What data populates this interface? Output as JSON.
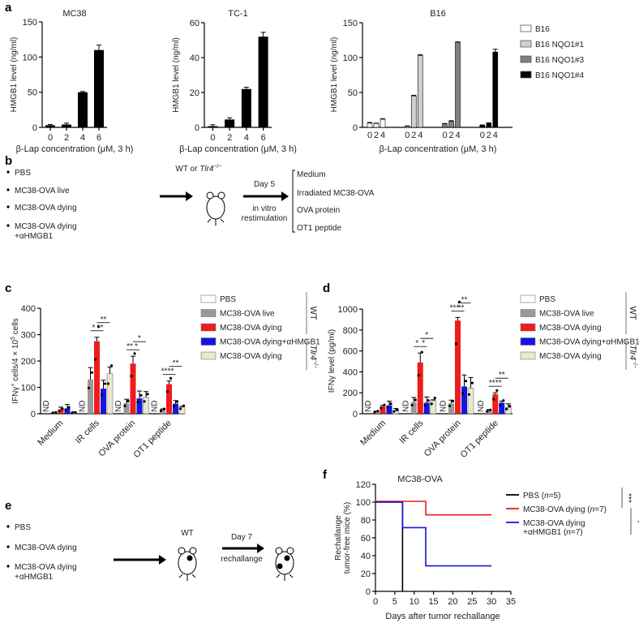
{
  "panel_labels": {
    "a": "a",
    "b": "b",
    "c": "c",
    "d": "d",
    "e": "e",
    "f": "f"
  },
  "chart_data": [
    {
      "id": "a-mc38",
      "type": "bar",
      "title": "MC38",
      "ylabel": "HMGB1 level (ng/ml)",
      "xlabel": "β-Lap concentration (μM, 3 h)",
      "ylim": [
        0,
        150
      ],
      "yticks": [
        0,
        50,
        100,
        150
      ],
      "categories": [
        "0",
        "2",
        "4",
        "6"
      ],
      "values": [
        3,
        4,
        50,
        110
      ],
      "errors": [
        1,
        2,
        1,
        7
      ],
      "color": "#000000"
    },
    {
      "id": "a-tc1",
      "type": "bar",
      "title": "TC-1",
      "ylabel": "HMGB1 level (ng/ml)",
      "xlabel": "β-Lap concentration (μM, 3 h)",
      "ylim": [
        0,
        60
      ],
      "yticks": [
        0,
        20,
        40,
        60
      ],
      "categories": [
        "0",
        "2",
        "4",
        "6"
      ],
      "values": [
        0.7,
        4.5,
        22,
        52
      ],
      "errors": [
        0.8,
        1,
        1,
        2.5
      ],
      "color": "#000000"
    },
    {
      "id": "a-b16",
      "type": "bar",
      "title": "B16",
      "ylabel": "HMGB1 level (ng/ml)",
      "xlabel": "β-Lap concentration (μM, 3 h)",
      "ylim": [
        0,
        150
      ],
      "yticks": [
        0,
        50,
        100,
        150
      ],
      "categories": [
        "0",
        "2",
        "4"
      ],
      "series": [
        {
          "name": "B16",
          "values": [
            6,
            5.5,
            11.5
          ],
          "errors": [
            1,
            0.5,
            1
          ],
          "color": "#ffffff"
        },
        {
          "name": "B16 NQO1#1",
          "values": [
            1.5,
            45,
            103
          ],
          "errors": [
            0.5,
            1,
            1
          ],
          "color": "#d0d0d0"
        },
        {
          "name": "B16 NQO1#3",
          "values": [
            5,
            8.5,
            122
          ],
          "errors": [
            0.5,
            1,
            0.5
          ],
          "color": "#808080"
        },
        {
          "name": "B16 NQO1#4",
          "values": [
            3,
            6,
            108
          ],
          "errors": [
            0.5,
            0.5,
            4
          ],
          "color": "#000000"
        }
      ]
    },
    {
      "id": "c",
      "type": "bar",
      "ylabel": {
        "pre": "IFNγ",
        "sup1": "+",
        "mid": " cells/4 × 10",
        "sup2": "5",
        "post": " cells"
      },
      "ylim": [
        0,
        400
      ],
      "yticks": [
        0,
        100,
        200,
        300,
        400
      ],
      "categories": [
        "Medium",
        "IR cells",
        "OVA protein",
        "OT1 peptide"
      ],
      "nd_label": "ND",
      "group_labels": {
        "wt": "WT",
        "tlr4": "Tlr4",
        "tlr4_sup": "−/−"
      },
      "series": [
        {
          "name": "PBS",
          "values": [
            0,
            0,
            0,
            0
          ],
          "errors": [
            0,
            0,
            0,
            0
          ],
          "color": "#ffffff",
          "nd": true
        },
        {
          "name": "MC38-OVA live",
          "values": [
            4,
            130,
            40,
            15
          ],
          "errors": [
            2,
            45,
            15,
            3
          ],
          "color": "#999999"
        },
        {
          "name": "MC38-OVA dying",
          "values": [
            15,
            275,
            190,
            112
          ],
          "errors": [
            10,
            15,
            28,
            12
          ],
          "color": "#ee1c1c"
        },
        {
          "name": "MC38-OVA dying+αHMGB1",
          "values": [
            20,
            95,
            58,
            38
          ],
          "errors": [
            15,
            32,
            28,
            12
          ],
          "color": "#1515e0"
        },
        {
          "name": "MC38-OVA dying",
          "values": [
            4,
            152,
            62,
            25
          ],
          "errors": [
            3,
            25,
            22,
            3
          ],
          "color": "#ece6cf"
        }
      ],
      "significance": [
        {
          "group": 1,
          "pair": [
            1,
            2
          ],
          "label": "*"
        },
        {
          "group": 1,
          "pair": [
            2,
            3
          ],
          "label": "**"
        },
        {
          "group": 1,
          "pair": [
            2,
            4
          ],
          "label": "**"
        },
        {
          "group": 2,
          "pair": [
            1,
            2
          ],
          "label": "**"
        },
        {
          "group": 2,
          "pair": [
            2,
            3
          ],
          "label": "*"
        },
        {
          "group": 2,
          "pair": [
            2,
            4
          ],
          "label": "*"
        },
        {
          "group": 3,
          "pair": [
            1,
            2
          ],
          "label": "***"
        },
        {
          "group": 3,
          "pair": [
            2,
            3
          ],
          "label": "*"
        },
        {
          "group": 3,
          "pair": [
            2,
            4
          ],
          "label": "**"
        }
      ]
    },
    {
      "id": "d",
      "type": "bar",
      "ylabel": "IFNγ level (pg/ml)",
      "ylim": [
        0,
        1000
      ],
      "yticks": [
        0,
        200,
        400,
        600,
        800,
        1000
      ],
      "categories": [
        "Medium",
        "IR cells",
        "OVA protein",
        "OT1 peptide"
      ],
      "nd_label": "ND",
      "group_labels": {
        "wt": "WT",
        "tlr4": "Tlr4",
        "tlr4_sup": "−/−"
      },
      "series": [
        {
          "name": "PBS",
          "values": [
            0,
            0,
            0,
            0
          ],
          "errors": [
            0,
            0,
            0,
            0
          ],
          "color": "#ffffff",
          "nd": true
        },
        {
          "name": "MC38-OVA live",
          "values": [
            20,
            110,
            100,
            30
          ],
          "errors": [
            5,
            45,
            30,
            10
          ],
          "color": "#999999"
        },
        {
          "name": "MC38-OVA dying",
          "values": [
            70,
            490,
            890,
            185
          ],
          "errors": [
            10,
            90,
            30,
            15
          ],
          "color": "#ee1c1c"
        },
        {
          "name": "MC38-OVA dying+αHMGB1",
          "values": [
            80,
            105,
            260,
            105
          ],
          "errors": [
            40,
            55,
            110,
            15
          ],
          "color": "#1515e0"
        },
        {
          "name": "MC38-OVA dying",
          "values": [
            30,
            125,
            245,
            60
          ],
          "errors": [
            20,
            8,
            100,
            35
          ],
          "color": "#ece6cf"
        }
      ],
      "significance": [
        {
          "group": 1,
          "pair": [
            1,
            2
          ],
          "label": "*"
        },
        {
          "group": 1,
          "pair": [
            2,
            3
          ],
          "label": "*"
        },
        {
          "group": 1,
          "pair": [
            2,
            4
          ],
          "label": "*"
        },
        {
          "group": 2,
          "pair": [
            1,
            2
          ],
          "label": "***"
        },
        {
          "group": 2,
          "pair": [
            2,
            3
          ],
          "label": "**"
        },
        {
          "group": 2,
          "pair": [
            2,
            4
          ],
          "label": "**"
        },
        {
          "group": 3,
          "pair": [
            1,
            2
          ],
          "label": "**"
        },
        {
          "group": 3,
          "pair": [
            2,
            3
          ],
          "label": "**"
        },
        {
          "group": 3,
          "pair": [
            2,
            4
          ],
          "label": "**"
        }
      ]
    },
    {
      "id": "f",
      "type": "line",
      "title": "MC38-OVA",
      "ylabel": [
        "Rechallange",
        "tumor-free mice (%)"
      ],
      "xlabel": "Days after tumor rechallange",
      "xlim": [
        0,
        35
      ],
      "xticks": [
        0,
        5,
        10,
        15,
        20,
        25,
        30,
        35
      ],
      "ylim": [
        0,
        120
      ],
      "yticks": [
        0,
        20,
        40,
        60,
        80,
        100,
        120
      ],
      "series": [
        {
          "name": "PBS",
          "label": [
            "PBS (",
            "n",
            "=5)"
          ],
          "color": "#000000",
          "x": [
            0,
            7,
            7
          ],
          "y": [
            100,
            100,
            0
          ]
        },
        {
          "name": "MC38-OVA dying",
          "label": [
            "MC38-OVA dying (",
            "n",
            "=7)"
          ],
          "color": "#ee1c1c",
          "x": [
            0,
            13,
            13,
            30
          ],
          "y": [
            100,
            100,
            85.7,
            85.7
          ]
        },
        {
          "name": "MC38-OVA dying +αHMGB1",
          "label": [
            "MC38-OVA dying",
            "+αHMGB1 (",
            "n",
            "=7)"
          ],
          "color": "#1515e0",
          "x": [
            0,
            7,
            7,
            13,
            13,
            30
          ],
          "y": [
            100,
            100,
            71.4,
            71.4,
            28.6,
            28.6
          ]
        }
      ],
      "significance": [
        "***",
        "*"
      ]
    }
  ],
  "panel_b": {
    "groups": [
      "PBS",
      "MC38-OVA live",
      "MC38-OVA dying",
      "MC38-OVA dying",
      "+αHMGB1"
    ],
    "mouse_label": {
      "pre": "WT or ",
      "gene": "Tlr4",
      "sup": "−/−"
    },
    "day": "Day 5",
    "step": [
      "in vitro",
      "restimulation"
    ],
    "stimuli": [
      "Medium",
      "Irradiated MC38-OVA",
      "OVA protein",
      "OT1 peptide"
    ]
  },
  "panel_e": {
    "groups": [
      "PBS",
      "MC38-OVA dying",
      "MC38-OVA dying",
      "+αHMGB1"
    ],
    "mouse_label": "WT",
    "day": "Day 7",
    "step": "rechallange"
  }
}
